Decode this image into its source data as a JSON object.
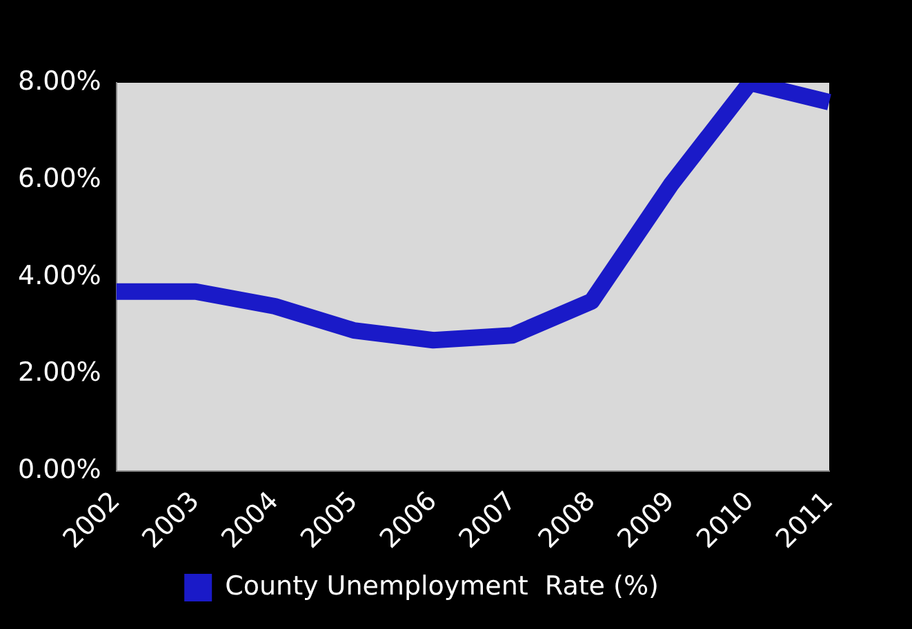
{
  "chart_data": {
    "type": "line",
    "categories": [
      "2002",
      "2003",
      "2004",
      "2005",
      "2006",
      "2007",
      "2008",
      "2009",
      "2010",
      "2011"
    ],
    "series": [
      {
        "name": "County Unemployment  Rate (%)",
        "color": "#1a1ac8",
        "values": [
          3.7,
          3.7,
          3.4,
          2.9,
          2.7,
          2.8,
          3.5,
          5.9,
          8.0,
          7.6
        ]
      }
    ],
    "ylim": [
      0,
      8
    ],
    "yticks": [
      {
        "value": 0,
        "label": "0.00%"
      },
      {
        "value": 2,
        "label": "2.00%"
      },
      {
        "value": 4,
        "label": "4.00%"
      },
      {
        "value": 6,
        "label": "6.00%"
      },
      {
        "value": 8,
        "label": "8.00%"
      }
    ],
    "grid": false,
    "legend": "bottom",
    "marker": "none",
    "line_style": "solid"
  }
}
